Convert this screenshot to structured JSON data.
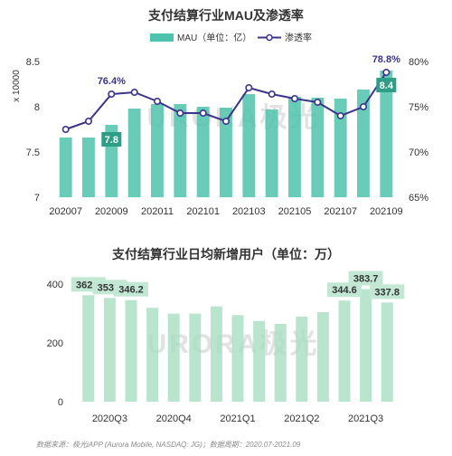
{
  "chart_data": [
    {
      "type": "bar+line",
      "title": "支付结算行业MAU及渗透率",
      "legend": {
        "placement": "top-center",
        "bar_label": "MAU（单位：亿）",
        "line_label": "渗透率"
      },
      "categories": [
        "202007",
        "202008",
        "202009",
        "202010",
        "202011",
        "202012",
        "202101",
        "202102",
        "202103",
        "202104",
        "202105",
        "202106",
        "202107",
        "202108",
        "202109"
      ],
      "x_tick_labels": [
        "202007",
        "202009",
        "202011",
        "202101",
        "202103",
        "202105",
        "202107",
        "202109"
      ],
      "bar_series": {
        "name": "MAU（单位：亿）",
        "values": [
          7.66,
          7.66,
          7.8,
          7.98,
          8.03,
          8.03,
          8.0,
          7.99,
          8.14,
          7.97,
          8.11,
          8.1,
          8.09,
          8.19,
          8.4
        ]
      },
      "line_series": {
        "name": "渗透率",
        "values": [
          72.5,
          73.4,
          76.4,
          76.6,
          75.6,
          74.3,
          74.3,
          73.4,
          77.1,
          76.4,
          75.9,
          75.5,
          74.0,
          75.0,
          78.8
        ]
      },
      "y_left": {
        "label": "x 10000",
        "range": [
          7,
          8.5
        ],
        "ticks": [
          "7",
          "7.5",
          "8",
          "8.5"
        ]
      },
      "y_right": {
        "range": [
          65,
          80
        ],
        "ticks": [
          "65%",
          "70%",
          "75%",
          "80%"
        ]
      },
      "annotations": {
        "line": [
          {
            "index": 2,
            "text": "76.4%"
          },
          {
            "index": 14,
            "text": "78.8%"
          }
        ],
        "bar": [
          {
            "index": 2,
            "text": "7.8"
          },
          {
            "index": 14,
            "text": "8.4"
          }
        ]
      },
      "colors": {
        "bar": "#4dc3ad",
        "line": "#3b3489",
        "label_box": "#2e9e86"
      }
    },
    {
      "type": "bar",
      "title": "支付结算行业日均新增用户（单位：万）",
      "categories": [
        "202007",
        "202008",
        "202009",
        "202010",
        "202011",
        "202012",
        "202101",
        "202102",
        "202103",
        "202104",
        "202105",
        "202106",
        "202107",
        "202108",
        "202109"
      ],
      "x_tick_labels": [
        "2020Q3",
        "2020Q4",
        "2021Q1",
        "2021Q2",
        "2021Q3"
      ],
      "values": [
        362.8,
        353.5,
        346.2,
        320,
        300,
        300,
        325,
        295,
        275,
        265,
        290,
        305,
        344.6,
        383.7,
        337.8
      ],
      "ylim": [
        0,
        450
      ],
      "y_ticks": [
        "0",
        "200",
        "400"
      ],
      "annotations": [
        {
          "index": 0,
          "text": "362.8"
        },
        {
          "index": 1,
          "text": "353.5"
        },
        {
          "index": 2,
          "text": "346.2"
        },
        {
          "index": 12,
          "text": "344.6"
        },
        {
          "index": 13,
          "text": "383.7"
        },
        {
          "index": 14,
          "text": "337.8"
        }
      ],
      "colors": {
        "bar": "#a8dfc2",
        "label_bg": "#c2e8d4"
      }
    }
  ],
  "watermark": "URORA极光",
  "footer": {
    "source": "数据来源：极光iAPP (Aurora Mobile, NASDAQ: JG)；数据周期：2020.07-2021.09"
  }
}
